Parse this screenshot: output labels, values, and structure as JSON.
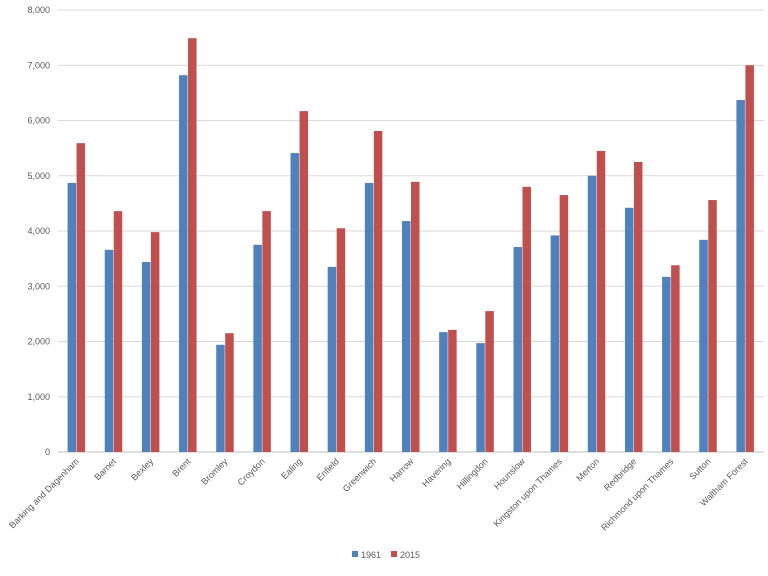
{
  "chart_data": {
    "type": "bar",
    "title": "",
    "xlabel": "",
    "ylabel": "",
    "ylim": [
      0,
      8000
    ],
    "yticks": [
      "0",
      "1,000",
      "2,000",
      "3,000",
      "4,000",
      "5,000",
      "6,000",
      "7,000",
      "8,000"
    ],
    "grid": true,
    "legend_placement": "bottom",
    "categories": [
      "Barking and Dagenham",
      "Barnet",
      "Bexley",
      "Brent",
      "Bromley",
      "Croydon",
      "Ealing",
      "Enfield",
      "Greenwich",
      "Harrow",
      "Havering",
      "Hillingdon",
      "Hounslow",
      "Kingston upon Thames",
      "Merton",
      "Redbridge",
      "Richmond upon Thames",
      "Sutton",
      "Waltham Forest"
    ],
    "series": [
      {
        "name": "1961",
        "color": "#4F81BD",
        "values": [
          4870,
          3660,
          3440,
          6820,
          1940,
          3750,
          5410,
          3350,
          4870,
          4180,
          2170,
          1970,
          3710,
          3920,
          5000,
          4420,
          3170,
          3840,
          6370
        ]
      },
      {
        "name": "2015",
        "color": "#C0504D",
        "values": [
          5590,
          4360,
          3980,
          7490,
          2150,
          4360,
          6170,
          4050,
          5810,
          4890,
          2210,
          2550,
          4800,
          4650,
          5450,
          5250,
          3380,
          4560,
          7000
        ]
      }
    ]
  }
}
